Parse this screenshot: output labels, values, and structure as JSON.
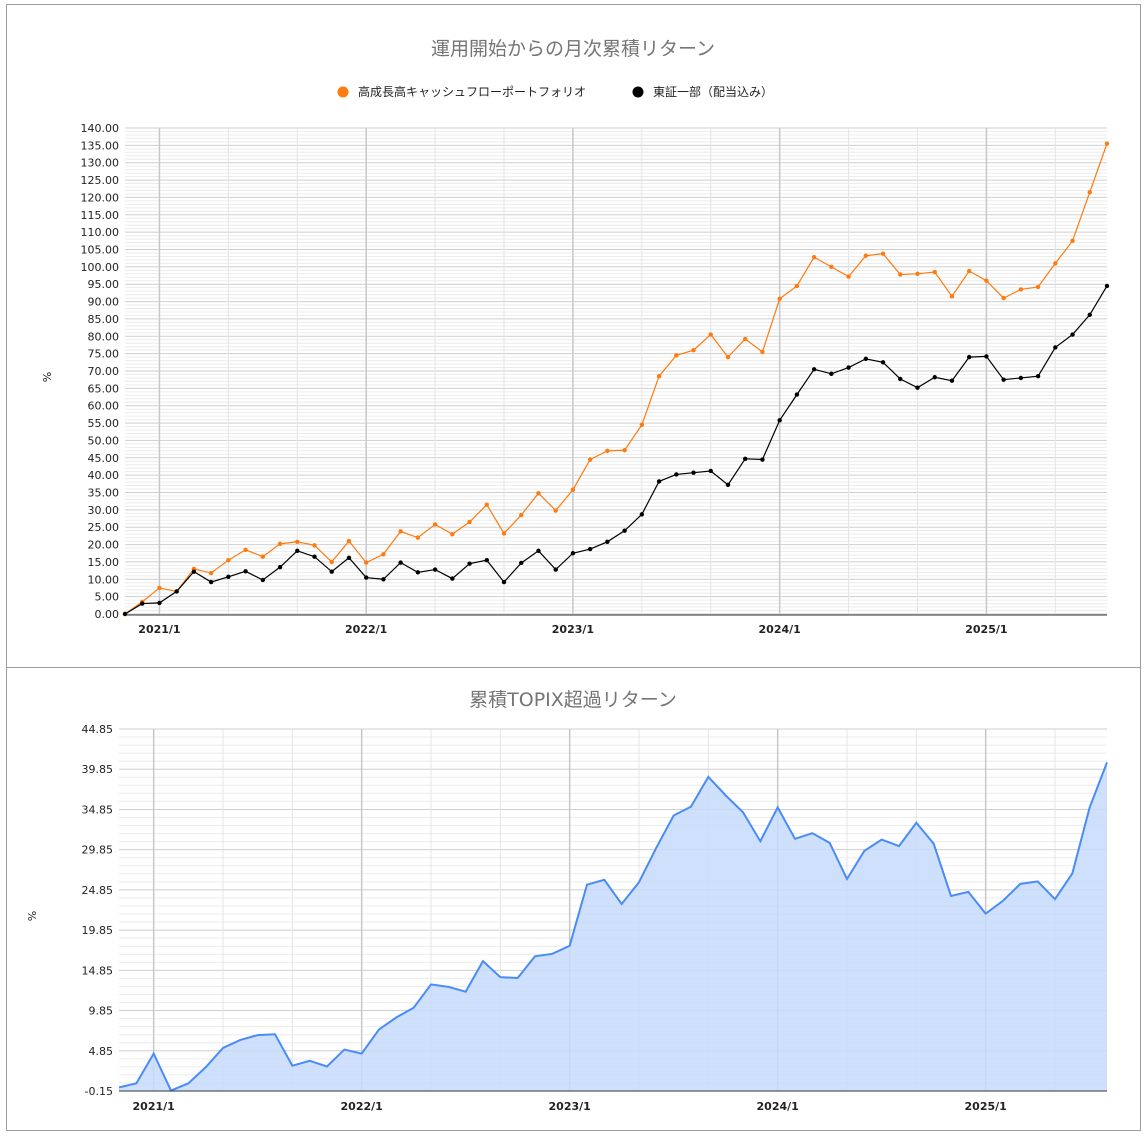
{
  "chart_data": [
    {
      "type": "line",
      "title": "運用開始からの月次累積リターン",
      "ylabel": "%",
      "ylim": [
        0,
        140
      ],
      "y_tick_step": 5,
      "x_tick_labels": [
        "2021/1",
        "2022/1",
        "2023/1",
        "2024/1",
        "2025/1"
      ],
      "x_tick_index": [
        2,
        14,
        26,
        38,
        50
      ],
      "legend_position": "top",
      "series": [
        {
          "name": "高成長高キャッシュフローポートフォリオ",
          "color": "#ff7a10",
          "values": [
            0,
            3.5,
            7.5,
            6.5,
            13,
            11.8,
            15.5,
            18.5,
            16.5,
            20.2,
            20.8,
            19.8,
            15,
            21,
            14.8,
            17.2,
            23.8,
            22,
            25.8,
            23,
            26.5,
            31.5,
            23.2,
            28.5,
            34.8,
            29.8,
            35.8,
            44.5,
            47,
            47.2,
            54.5,
            68.5,
            74.5,
            76,
            80.5,
            74,
            79.2,
            75.5,
            90.8,
            94.5,
            102.8,
            100,
            97.2,
            103.2,
            103.8,
            97.8,
            98,
            98.5,
            91.5,
            98.8,
            96,
            91,
            93.5,
            94.2,
            101,
            107.5,
            121.5,
            135.5
          ]
        },
        {
          "name": "東証一部（配当込み）",
          "color": "#000000",
          "values": [
            0,
            3,
            3.2,
            6.5,
            12.2,
            9.2,
            10.7,
            12.3,
            9.8,
            13.5,
            18.2,
            16.5,
            12.2,
            16.2,
            10.5,
            10,
            14.8,
            12,
            12.8,
            10.2,
            14.5,
            15.5,
            9.2,
            14.7,
            18.2,
            12.8,
            17.5,
            18.7,
            20.8,
            24,
            28.7,
            38.2,
            40.2,
            40.7,
            41.2,
            37.2,
            44.7,
            44.5,
            55.8,
            63.2,
            70.5,
            69.2,
            71,
            73.5,
            72.5,
            67.7,
            65.2,
            68.2,
            67.2,
            74,
            74.2,
            67.5,
            68,
            68.5,
            76.8,
            80.5,
            86.2,
            94.5
          ]
        }
      ]
    },
    {
      "type": "area",
      "title": "累積TOPIX超過リターン",
      "ylabel": "%",
      "ylim": [
        -0.15,
        44.85
      ],
      "y_ticks": [
        -0.15,
        4.85,
        9.85,
        14.85,
        19.85,
        24.85,
        29.85,
        34.85,
        39.85,
        44.85
      ],
      "x_tick_labels": [
        "2021/1",
        "2022/1",
        "2023/1",
        "2024/1",
        "2025/1"
      ],
      "x_tick_index": [
        2,
        14,
        26,
        38,
        50
      ],
      "series": [
        {
          "color": "#4a8cf7",
          "fill": "#c6dafc",
          "values": [
            0.3,
            0.8,
            4.5,
            -0.1,
            0.8,
            2.8,
            5.2,
            6.2,
            6.8,
            6.9,
            3,
            3.6,
            2.9,
            5,
            4.5,
            7.5,
            9,
            10.2,
            13.1,
            12.8,
            12.2,
            16,
            14,
            13.9,
            16.6,
            16.9,
            17.9,
            25.5,
            26.1,
            23.1,
            25.8,
            30.1,
            34.1,
            35.2,
            38.9,
            36.6,
            34.5,
            30.9,
            35.1,
            31.2,
            31.9,
            30.7,
            26.2,
            29.7,
            31.1,
            30.3,
            33.2,
            30.6,
            24.1,
            24.6,
            21.9,
            23.5,
            25.6,
            25.9,
            23.7,
            26.9,
            35.1,
            40.7
          ]
        }
      ]
    }
  ]
}
